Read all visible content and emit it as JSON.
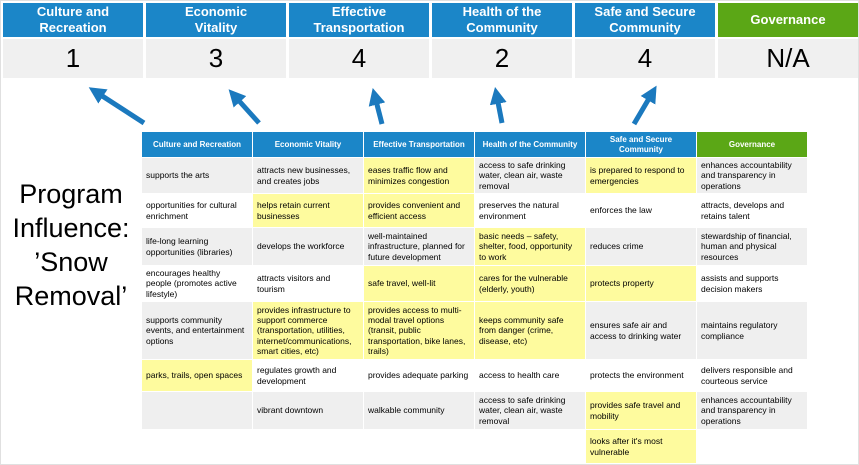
{
  "colors": {
    "header_blue": "#1B86C8",
    "governance_green": "#5BA716",
    "highlight_yellow": "#FEFB9E",
    "row_band_gray": "#EFEFEF",
    "score_bg": "#F0F0F0",
    "arrow_blue": "#1B79BE"
  },
  "priorities": [
    {
      "name": "Culture and Recreation",
      "score": "1"
    },
    {
      "name": "Economic Vitality",
      "score": "3"
    },
    {
      "name": "Effective Transportation",
      "score": "4"
    },
    {
      "name": "Health of the Community",
      "score": "2"
    },
    {
      "name": "Safe and Secure Community",
      "score": "4"
    },
    {
      "name": "Governance",
      "score": "N/A"
    }
  ],
  "program_label": {
    "line1": "Program Influence:",
    "line2": "’Snow Removal’"
  },
  "matrix": {
    "headers": [
      "Culture and Recreation",
      "Economic Vitality",
      "Effective Transportation",
      "Health of the Community",
      "Safe and Secure Community",
      "Governance"
    ],
    "rows": [
      [
        {
          "text": "supports the arts",
          "highlight": false
        },
        {
          "text": "attracts new businesses, and creates jobs",
          "highlight": false
        },
        {
          "text": "eases traffic flow and minimizes congestion",
          "highlight": true
        },
        {
          "text": "access to safe drinking water, clean air, waste removal",
          "highlight": false
        },
        {
          "text": "is prepared to respond to emergencies",
          "highlight": true
        },
        {
          "text": "enhances accountability and transparency in operations",
          "highlight": false
        }
      ],
      [
        {
          "text": "opportunities for cultural enrichment",
          "highlight": false
        },
        {
          "text": "helps retain current businesses",
          "highlight": true
        },
        {
          "text": "provides convenient and efficient access",
          "highlight": true
        },
        {
          "text": "preserves the natural environment",
          "highlight": false
        },
        {
          "text": "enforces the law",
          "highlight": false
        },
        {
          "text": "attracts, develops and retains talent",
          "highlight": false
        }
      ],
      [
        {
          "text": "life-long learning opportunities (libraries)",
          "highlight": false
        },
        {
          "text": "develops the workforce",
          "highlight": false
        },
        {
          "text": "well-maintained infrastructure, planned for future development",
          "highlight": false
        },
        {
          "text": "basic needs – safety, shelter, food, opportunity to work",
          "highlight": true
        },
        {
          "text": "reduces crime",
          "highlight": false
        },
        {
          "text": "stewardship of financial, human and physical resources",
          "highlight": false
        }
      ],
      [
        {
          "text": "encourages healthy people (promotes active lifestyle)",
          "highlight": false
        },
        {
          "text": "attracts visitors and tourism",
          "highlight": false
        },
        {
          "text": "safe travel, well-lit",
          "highlight": true
        },
        {
          "text": "cares for the vulnerable (elderly, youth)",
          "highlight": true
        },
        {
          "text": "protects property",
          "highlight": true
        },
        {
          "text": "assists and supports decision makers",
          "highlight": false
        }
      ],
      [
        {
          "text": "supports community events, and entertainment options",
          "highlight": false
        },
        {
          "text": "provides infrastructure to support commerce (transportation, utilities, internet/communications, smart cities, etc)",
          "highlight": true
        },
        {
          "text": "provides access to multi-modal travel options (transit, public transportation, bike lanes, trails)",
          "highlight": true
        },
        {
          "text": "keeps community safe from danger (crime, disease, etc)",
          "highlight": true
        },
        {
          "text": "ensures safe air and access to drinking water",
          "highlight": false
        },
        {
          "text": "maintains regulatory compliance",
          "highlight": false
        }
      ],
      [
        {
          "text": "parks, trails, open spaces",
          "highlight": true
        },
        {
          "text": "regulates growth and development",
          "highlight": false
        },
        {
          "text": "provides adequate parking",
          "highlight": false
        },
        {
          "text": "access to health care",
          "highlight": false
        },
        {
          "text": "protects the environment",
          "highlight": false
        },
        {
          "text": "delivers responsible and courteous service",
          "highlight": false
        }
      ],
      [
        {
          "text": "",
          "highlight": false
        },
        {
          "text": "vibrant downtown",
          "highlight": false
        },
        {
          "text": "walkable community",
          "highlight": false
        },
        {
          "text": "access to safe drinking water, clean air, waste removal",
          "highlight": false
        },
        {
          "text": "provides safe travel and mobility",
          "highlight": true
        },
        {
          "text": "enhances accountability and transparency in operations",
          "highlight": false
        }
      ],
      [
        {
          "text": "",
          "highlight": false
        },
        {
          "text": "",
          "highlight": false
        },
        {
          "text": "",
          "highlight": false
        },
        {
          "text": "",
          "highlight": false
        },
        {
          "text": "looks after it's most vulnerable",
          "highlight": true
        },
        {
          "text": "",
          "highlight": false
        }
      ]
    ]
  }
}
